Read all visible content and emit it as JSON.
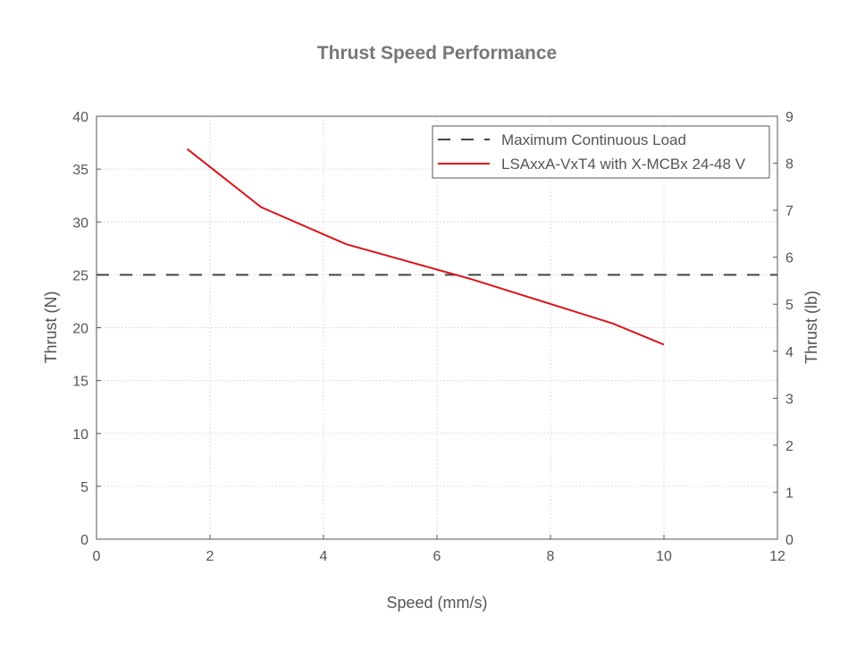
{
  "chart_data": {
    "type": "line",
    "title": "Thrust Speed Performance",
    "xlabel": "Speed (mm/s)",
    "ylabel": "Thrust (N)",
    "y2label": "Thrust (lb)",
    "xlim": [
      0,
      12
    ],
    "ylim": [
      0,
      40
    ],
    "y2lim": [
      0,
      9
    ],
    "xticks": [
      0,
      2,
      4,
      6,
      8,
      10,
      12
    ],
    "yticks": [
      0,
      5,
      10,
      15,
      20,
      25,
      30,
      35,
      40
    ],
    "y2ticks": [
      0,
      1,
      2,
      3,
      4,
      5,
      6,
      7,
      8,
      9
    ],
    "grid": true,
    "legend_placement": "top-right",
    "series": [
      {
        "name": "Maximum Continuous Load",
        "style": "dashed",
        "color": "#444444",
        "x": [
          0,
          12
        ],
        "y": [
          25,
          25
        ]
      },
      {
        "name": "LSAxxA-VxT4 with X-MCBx 24-48 V",
        "style": "solid",
        "color": "#d9151b",
        "x": [
          1.6,
          2.9,
          4.4,
          6.6,
          9.1,
          10.0
        ],
        "y": [
          36.9,
          31.4,
          27.9,
          24.6,
          20.4,
          18.4
        ]
      }
    ]
  }
}
